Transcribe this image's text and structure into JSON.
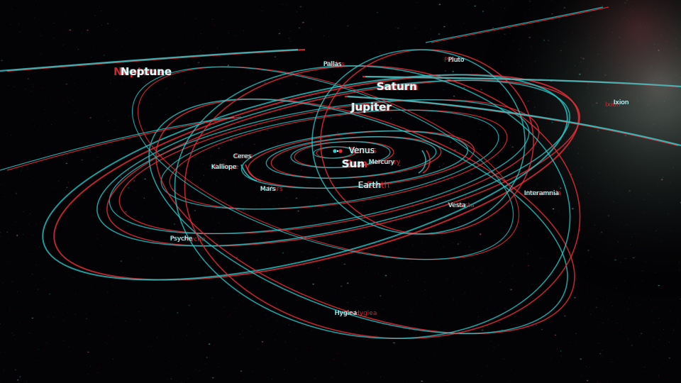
{
  "scene": {
    "colors": {
      "left_eye": "#e8303a",
      "right_eye": "#2ad0d0",
      "label_text": "#e8f6f6",
      "background": "#030204"
    },
    "bodies": {
      "neptune": "Neptune",
      "saturn": "Saturn",
      "jupiter": "Jupiter",
      "venus": "Venus",
      "sun": "Sun",
      "earth": "Earth",
      "mercury": "Mercury",
      "mars": "Mars",
      "ceres": "Ceres",
      "pallas": "Pallas",
      "pluto": "Pluto",
      "ixion": "Ixion",
      "kalliope": "Kalliope",
      "psyche": "Psyche",
      "vesta": "Vesta",
      "interamnia": "Interamnia",
      "hygiea": "Hygiea"
    }
  }
}
